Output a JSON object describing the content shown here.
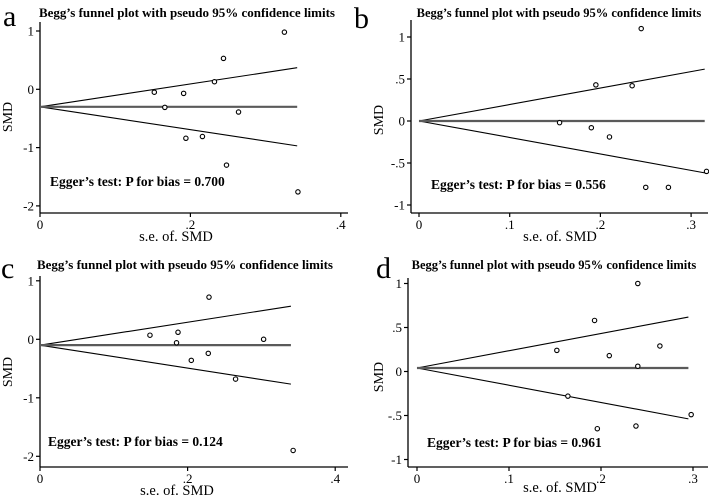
{
  "page": {
    "background": "#ffffff"
  },
  "figure": {
    "line_color": "#000000",
    "center_line_color": "#5a5a5a",
    "point_style": "open-circle"
  },
  "chart_data": [
    {
      "type": "scatter",
      "panel_label": "a",
      "title": "Begg’s funnel plot with pseudo 95% confidence limits",
      "xlabel": "s.e. of. SMD",
      "ylabel": "SMD",
      "annotation": "Egger’s test: P for bias = 0.700",
      "xlim": [
        0,
        0.41
      ],
      "ylim": [
        -2.15,
        1.1
      ],
      "x_ticks": {
        "values": [
          0,
          0.2,
          0.4
        ],
        "labels": [
          "0",
          ".2",
          ".4"
        ]
      },
      "y_ticks": {
        "values": [
          1,
          0,
          -1,
          -2
        ],
        "labels": [
          "1",
          "0",
          "-1",
          "-2"
        ]
      },
      "center_smd": -0.3,
      "funnel_max_se": 0.342,
      "ci_multiplier": 1.96,
      "points": [
        [
          0.325,
          0.98
        ],
        [
          0.244,
          0.53
        ],
        [
          0.232,
          0.13
        ],
        [
          0.152,
          -0.05
        ],
        [
          0.191,
          -0.07
        ],
        [
          0.166,
          -0.31
        ],
        [
          0.264,
          -0.39
        ],
        [
          0.216,
          -0.81
        ],
        [
          0.194,
          -0.84
        ],
        [
          0.248,
          -1.3
        ],
        [
          0.343,
          -1.76
        ]
      ]
    },
    {
      "type": "scatter",
      "panel_label": "b",
      "title": "Begg’s funnel plot with pseudo 95% confidence limits",
      "xlabel": "s.e. of. SMD",
      "ylabel": "SMD",
      "annotation": "Egger’s test: P for bias = 0.556",
      "xlim": [
        0,
        0.32
      ],
      "ylim": [
        -1.1,
        1.15
      ],
      "x_ticks": {
        "values": [
          0,
          0.1,
          0.2,
          0.3
        ],
        "labels": [
          "0",
          ".1",
          ".2",
          ".3"
        ]
      },
      "y_ticks": {
        "values": [
          1,
          0.5,
          0,
          -0.5,
          -1
        ],
        "labels": [
          "1",
          ".5",
          "0",
          "-.5",
          "-1"
        ]
      },
      "center_smd": 0.0,
      "funnel_max_se": 0.315,
      "ci_multiplier": 1.96,
      "points": [
        [
          0.245,
          1.1
        ],
        [
          0.195,
          0.43
        ],
        [
          0.235,
          0.42
        ],
        [
          0.155,
          -0.02
        ],
        [
          0.19,
          -0.08
        ],
        [
          0.21,
          -0.19
        ],
        [
          0.317,
          -0.6
        ],
        [
          0.25,
          -0.79
        ],
        [
          0.275,
          -0.79
        ]
      ]
    },
    {
      "type": "scatter",
      "panel_label": "c",
      "title": "Begg’s funnel plot with pseudo 95% confidence limits",
      "xlabel": "s.e. of. SMD",
      "ylabel": "SMD",
      "annotation": "Egger’s test: P for bias = 0.124",
      "xlim": [
        0,
        0.41
      ],
      "ylim": [
        -2.15,
        1.1
      ],
      "x_ticks": {
        "values": [
          0,
          0.2,
          0.4
        ],
        "labels": [
          "0",
          ".2",
          ".4"
        ]
      },
      "y_ticks": {
        "values": [
          1,
          0,
          -1,
          -2
        ],
        "labels": [
          "1",
          "0",
          "-1",
          "-2"
        ]
      },
      "center_smd": -0.1,
      "funnel_max_se": 0.34,
      "ci_multiplier": 1.96,
      "points": [
        [
          0.229,
          0.72
        ],
        [
          0.149,
          0.07
        ],
        [
          0.187,
          0.12
        ],
        [
          0.185,
          -0.06
        ],
        [
          0.303,
          0.0
        ],
        [
          0.228,
          -0.24
        ],
        [
          0.205,
          -0.36
        ],
        [
          0.265,
          -0.68
        ],
        [
          0.343,
          -1.9
        ]
      ]
    },
    {
      "type": "scatter",
      "panel_label": "d",
      "title": "Begg’s funnel plot with pseudo 95% confidence limits",
      "xlabel": "s.e. of. SMD",
      "ylabel": "SMD",
      "annotation": "Egger’s test: P for bias = 0.961",
      "xlim": [
        0,
        0.31
      ],
      "ylim": [
        -1.1,
        1.15
      ],
      "x_ticks": {
        "values": [
          0,
          0.1,
          0.2,
          0.3
        ],
        "labels": [
          "0",
          ".1",
          ".2",
          ".3"
        ]
      },
      "y_ticks": {
        "values": [
          1,
          0.5,
          0,
          -0.5,
          -1
        ],
        "labels": [
          "1",
          ".5",
          "0",
          "-.5",
          "-1"
        ]
      },
      "center_smd": 0.04,
      "funnel_max_se": 0.295,
      "ci_multiplier": 1.96,
      "points": [
        [
          0.24,
          1.0
        ],
        [
          0.193,
          0.58
        ],
        [
          0.152,
          0.24
        ],
        [
          0.264,
          0.29
        ],
        [
          0.209,
          0.18
        ],
        [
          0.24,
          0.06
        ],
        [
          0.164,
          -0.28
        ],
        [
          0.196,
          -0.65
        ],
        [
          0.238,
          -0.62
        ],
        [
          0.298,
          -0.49
        ]
      ]
    }
  ]
}
